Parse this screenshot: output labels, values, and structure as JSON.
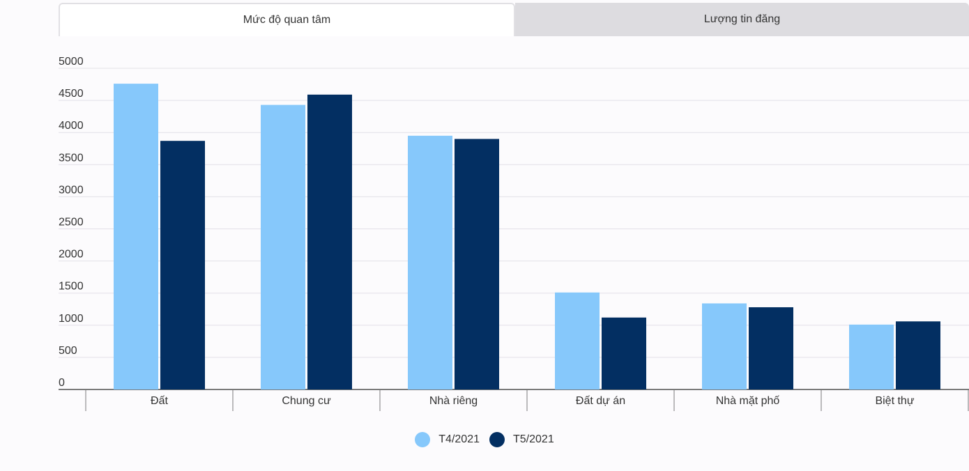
{
  "tabs": [
    {
      "label": "Mức độ quan tâm",
      "active": true
    },
    {
      "label": "Lượng tin đăng",
      "active": false
    }
  ],
  "chart_data": {
    "type": "bar",
    "categories": [
      "Đất",
      "Chung cư",
      "Nhà riêng",
      "Đất dự án",
      "Nhà mặt phố",
      "Biệt thự"
    ],
    "series": [
      {
        "name": "T4/2021",
        "color": "#86c8fb",
        "values": [
          4760,
          4430,
          3950,
          1510,
          1340,
          1010
        ]
      },
      {
        "name": "T5/2021",
        "color": "#032f62",
        "values": [
          3870,
          4590,
          3900,
          1120,
          1280,
          1060
        ]
      }
    ],
    "ylim": [
      0,
      5000
    ],
    "yticks": [
      0,
      500,
      1000,
      1500,
      2000,
      2500,
      3000,
      3500,
      4000,
      4500,
      5000
    ],
    "grid": true,
    "legend_position": "bottom-center"
  }
}
